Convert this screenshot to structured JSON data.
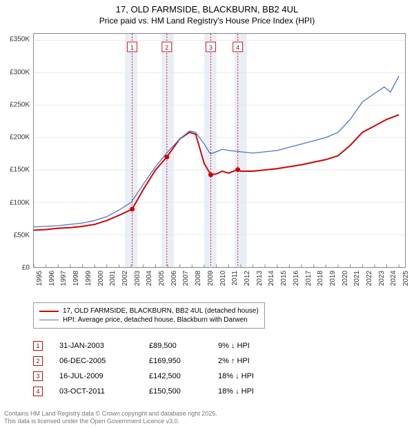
{
  "title": {
    "line1": "17, OLD FARMSIDE, BLACKBURN, BB2 4UL",
    "line2": "Price paid vs. HM Land Registry's House Price Index (HPI)"
  },
  "chart": {
    "type": "line",
    "background_color": "#ffffff",
    "grid_color": "#e8e8e8",
    "axis_color": "#888888",
    "highlight_band_color": "#e8eef6",
    "marker_line_color": "#e01020",
    "marker_line_dash": "2,2",
    "x_range": [
      1995,
      2025.5
    ],
    "x_ticks": [
      1995,
      1996,
      1997,
      1998,
      1999,
      2000,
      2001,
      2002,
      2003,
      2004,
      2005,
      2006,
      2007,
      2008,
      2009,
      2010,
      2011,
      2012,
      2013,
      2014,
      2015,
      2016,
      2017,
      2018,
      2019,
      2020,
      2021,
      2022,
      2023,
      2024,
      2025
    ],
    "y_range": [
      0,
      360000
    ],
    "y_ticks": [
      0,
      50000,
      100000,
      150000,
      200000,
      250000,
      300000,
      350000
    ],
    "y_tick_labels": [
      "£0",
      "£50K",
      "£100K",
      "£150K",
      "£200K",
      "£250K",
      "£300K",
      "£350K"
    ],
    "highlight_bands": [
      [
        2002.5,
        2003.5
      ],
      [
        2005.5,
        2006.5
      ],
      [
        2009.0,
        2010.0
      ],
      [
        2011.5,
        2012.5
      ]
    ],
    "series": [
      {
        "id": "price_paid",
        "label": "17, OLD FARMSIDE, BLACKBURN, BB2 4UL (detached house)",
        "color": "#d40000",
        "line_width": 2,
        "data": [
          [
            1995,
            57000
          ],
          [
            1996,
            58000
          ],
          [
            1997,
            60000
          ],
          [
            1998,
            61000
          ],
          [
            1999,
            63000
          ],
          [
            2000,
            66000
          ],
          [
            2001,
            72000
          ],
          [
            2002,
            80000
          ],
          [
            2003.08,
            89500
          ],
          [
            2004,
            120000
          ],
          [
            2005,
            150000
          ],
          [
            2005.93,
            169950
          ],
          [
            2006.5,
            185000
          ],
          [
            2007,
            198000
          ],
          [
            2007.8,
            208000
          ],
          [
            2008.3,
            205000
          ],
          [
            2009,
            160000
          ],
          [
            2009.54,
            142500
          ],
          [
            2010,
            144000
          ],
          [
            2010.5,
            148000
          ],
          [
            2011,
            145000
          ],
          [
            2011.76,
            150500
          ],
          [
            2012,
            148000
          ],
          [
            2013,
            148000
          ],
          [
            2014,
            150000
          ],
          [
            2015,
            152000
          ],
          [
            2016,
            155000
          ],
          [
            2017,
            158000
          ],
          [
            2018,
            162000
          ],
          [
            2019,
            166000
          ],
          [
            2020,
            172000
          ],
          [
            2021,
            188000
          ],
          [
            2022,
            208000
          ],
          [
            2023,
            218000
          ],
          [
            2024,
            228000
          ],
          [
            2025,
            235000
          ]
        ],
        "transaction_markers": [
          {
            "n": 1,
            "x": 2003.08,
            "y": 89500
          },
          {
            "n": 2,
            "x": 2005.93,
            "y": 169950
          },
          {
            "n": 3,
            "x": 2009.54,
            "y": 142500
          },
          {
            "n": 4,
            "x": 2011.76,
            "y": 150500
          }
        ]
      },
      {
        "id": "hpi",
        "label": "HPI: Average price, detached house, Blackburn with Darwen",
        "color": "#4a74c4",
        "line_width": 1.3,
        "data": [
          [
            1995,
            62000
          ],
          [
            1996,
            63000
          ],
          [
            1997,
            64000
          ],
          [
            1998,
            66000
          ],
          [
            1999,
            68000
          ],
          [
            2000,
            72000
          ],
          [
            2001,
            78000
          ],
          [
            2002,
            88000
          ],
          [
            2003,
            100000
          ],
          [
            2004,
            128000
          ],
          [
            2005,
            155000
          ],
          [
            2006,
            178000
          ],
          [
            2007,
            198000
          ],
          [
            2007.8,
            210000
          ],
          [
            2008.3,
            208000
          ],
          [
            2009,
            190000
          ],
          [
            2009.5,
            175000
          ],
          [
            2010,
            178000
          ],
          [
            2010.5,
            182000
          ],
          [
            2011,
            180000
          ],
          [
            2012,
            178000
          ],
          [
            2013,
            176000
          ],
          [
            2014,
            178000
          ],
          [
            2015,
            180000
          ],
          [
            2016,
            185000
          ],
          [
            2017,
            190000
          ],
          [
            2018,
            195000
          ],
          [
            2019,
            200000
          ],
          [
            2020,
            208000
          ],
          [
            2021,
            228000
          ],
          [
            2022,
            255000
          ],
          [
            2023,
            268000
          ],
          [
            2023.8,
            278000
          ],
          [
            2024.3,
            270000
          ],
          [
            2025,
            295000
          ]
        ]
      }
    ],
    "top_markers": [
      {
        "n": "1",
        "x": 2003.08
      },
      {
        "n": "2",
        "x": 2005.93
      },
      {
        "n": "3",
        "x": 2009.54
      },
      {
        "n": "4",
        "x": 2011.76
      }
    ]
  },
  "legend": {
    "items": [
      {
        "color": "#d40000",
        "width": 2,
        "label": "17, OLD FARMSIDE, BLACKBURN, BB2 4UL (detached house)"
      },
      {
        "color": "#4a74c4",
        "width": 1.3,
        "label": "HPI: Average price, detached house, Blackburn with Darwen"
      }
    ]
  },
  "transactions": {
    "marker_border": "#d40000",
    "rows": [
      {
        "n": "1",
        "date": "31-JAN-2003",
        "price": "£89,500",
        "diff": "9% ↓ HPI"
      },
      {
        "n": "2",
        "date": "06-DEC-2005",
        "price": "£169,950",
        "diff": "2% ↑ HPI"
      },
      {
        "n": "3",
        "date": "16-JUL-2009",
        "price": "£142,500",
        "diff": "18% ↓ HPI"
      },
      {
        "n": "4",
        "date": "03-OCT-2011",
        "price": "£150,500",
        "diff": "18% ↓ HPI"
      }
    ]
  },
  "license": {
    "line1": "Contains HM Land Registry data © Crown copyright and database right 2025.",
    "line2": "This data is licensed under the Open Government Licence v3.0."
  }
}
